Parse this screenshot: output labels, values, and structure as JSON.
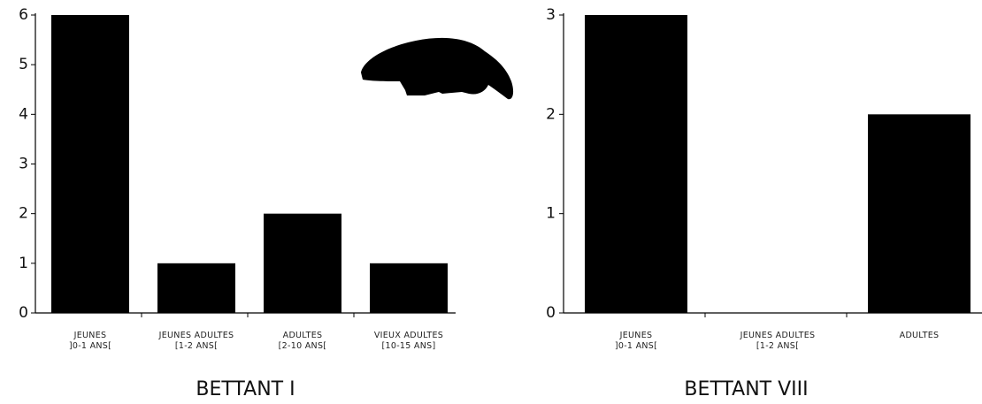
{
  "chart_data": [
    {
      "type": "bar",
      "title": "BETTANT I",
      "categories": [
        "JEUNES\n]0-1 ANS[",
        "JEUNES ADULTES\n[1-2 ANS[",
        "ADULTES\n[2-10 ANS[",
        "VIEUX ADULTES\n[10-15 ANS]"
      ],
      "values": [
        6,
        1,
        2,
        1
      ],
      "color": "#000000",
      "ylim": [
        0,
        6
      ],
      "yticks": [
        0,
        1,
        2,
        3,
        4,
        5,
        6
      ]
    },
    {
      "type": "bar",
      "title": "BETTANT VIII",
      "categories": [
        "JEUNES\n]0-1 ANS[",
        "JEUNES ADULTES\n[1-2 ANS[",
        "ADULTES"
      ],
      "values": [
        3,
        0,
        2
      ],
      "color": "#000000",
      "ylim": [
        0,
        3
      ],
      "yticks": [
        0,
        1,
        2,
        3
      ]
    }
  ]
}
